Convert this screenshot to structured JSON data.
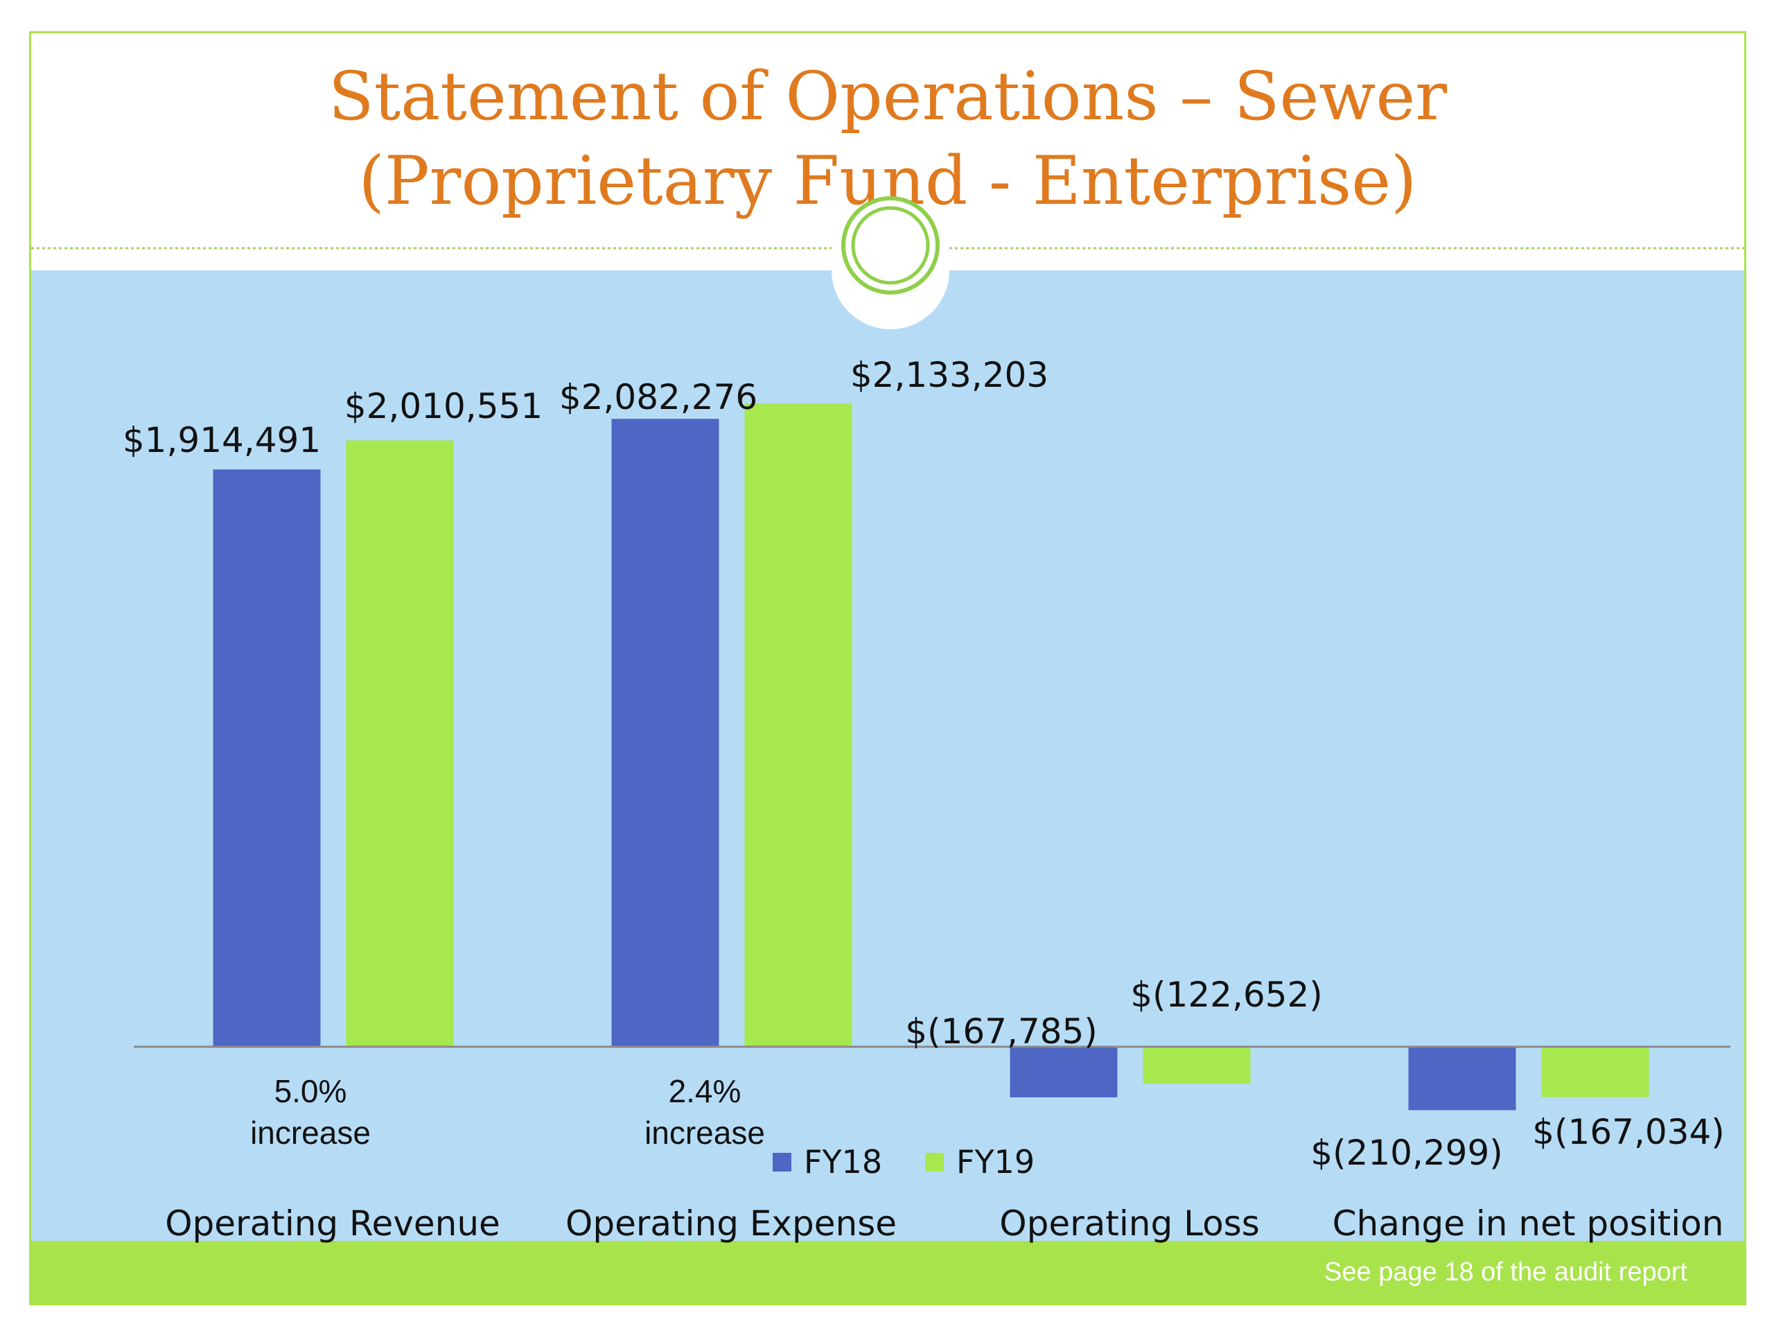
{
  "slide": {
    "title_line1": "Statement of Operations – Sewer",
    "title_line2": "(Proprietary Fund - Enterprise)",
    "footer_note": "See page 18 of the audit report"
  },
  "colors": {
    "title": "#e07a1f",
    "plot_background": "#b6dcf5",
    "footer_band": "#a9e34b",
    "fy18": "#4f66c4",
    "fy19": "#a6e84e"
  },
  "chart_data": {
    "type": "bar",
    "categories": [
      "Operating Revenue",
      "Operating Expense",
      "Operating Loss",
      "Change in net position"
    ],
    "series": [
      {
        "name": "FY18",
        "values": [
          1914491,
          2082276,
          -167785,
          -210299
        ],
        "labels": [
          "$1,914,491",
          "$2,082,276",
          "$(167,785)",
          "$(210,299)"
        ]
      },
      {
        "name": "FY19",
        "values": [
          2010551,
          2133203,
          -122652,
          -167034
        ],
        "labels": [
          "$2,010,551",
          "$2,133,203",
          "$(122,652)",
          "$(167,034)"
        ]
      }
    ],
    "annotations": [
      {
        "category": "Operating Revenue",
        "line1": "5.0%",
        "line2": "increase"
      },
      {
        "category": "Operating Expense",
        "line1": "2.4%",
        "line2": "increase"
      }
    ],
    "ylim": [
      -300000,
      2200000
    ],
    "legend": "bottom-center",
    "grid": false
  }
}
